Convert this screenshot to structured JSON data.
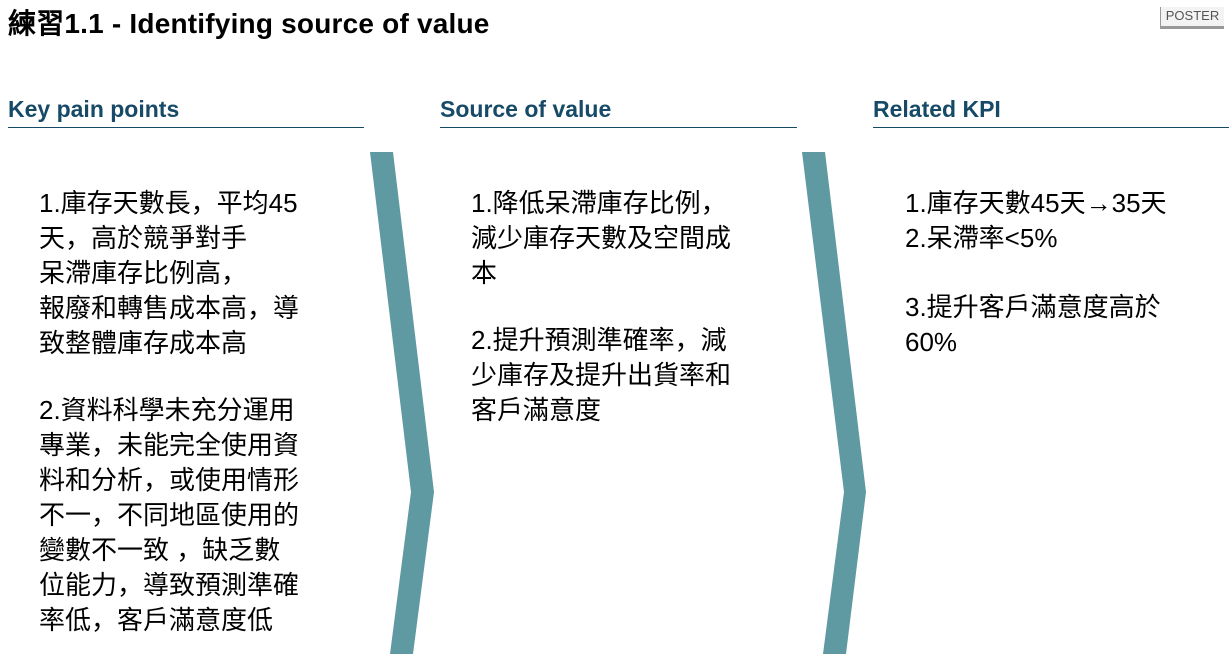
{
  "title": {
    "prefix": "練習",
    "text": "1.1 - Identifying source of value"
  },
  "badge": "POSTER",
  "colors": {
    "heading": "#174a67",
    "chevron": "#5f9aa3"
  },
  "columns": [
    {
      "heading": "Key pain points",
      "paragraphs": [
        "1.庫存天數長，平均45\n天，高於競爭對手\n呆滯庫存比例高，\n報廢和轉售成本高，導\n致整體庫存成本高",
        "2.資料科學未充分運用\n專業，未能完全使用資\n料和分析，或使用情形\n不一，不同地區使用的\n變數不一致 ，缺乏數\n位能力，導致預測準確\n率低，客戶滿意度低"
      ]
    },
    {
      "heading": "Source of value",
      "paragraphs": [
        "1.降低呆滯庫存比例，\n減少庫存天數及空間成\n本",
        "2.提升預測準確率，減\n少庫存及提升出貨率和\n客戶滿意度"
      ]
    },
    {
      "heading": "Related KPI",
      "paragraphs": [
        "1.庫存天數45天→35天\n2.呆滯率<5%",
        "3.提升客戶滿意度高於\n60%"
      ]
    }
  ]
}
